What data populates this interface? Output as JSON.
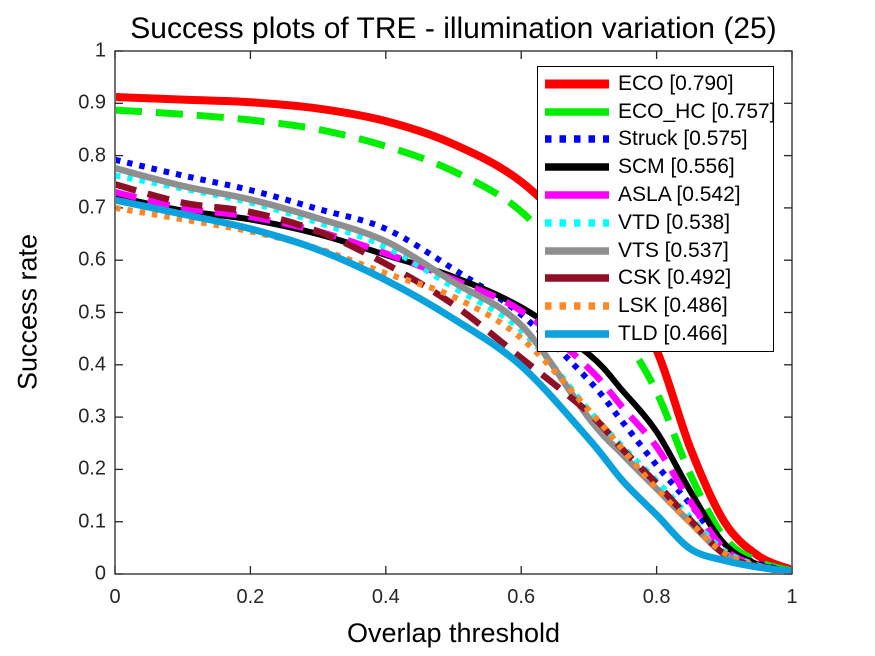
{
  "figure": {
    "title": "Success plots of TRE - illumination variation (25)",
    "xlabel": "Overlap threshold",
    "ylabel": "Success rate"
  },
  "chart_data": {
    "type": "line",
    "title": "Success plots of TRE - illumination variation (25)",
    "xlabel": "Overlap threshold",
    "ylabel": "Success rate",
    "xlim": [
      0,
      1
    ],
    "ylim": [
      0,
      1
    ],
    "grid": false,
    "legend_position": "upper right",
    "xtick_values": [
      0,
      0.2,
      0.4,
      0.6,
      0.8,
      1
    ],
    "xtick_labels": [
      "0",
      "0.2",
      "0.4",
      "0.6",
      "0.8",
      "1"
    ],
    "ytick_values": [
      0,
      0.1,
      0.2,
      0.3,
      0.4,
      0.5,
      0.6,
      0.7,
      0.8,
      0.9,
      1
    ],
    "ytick_labels": [
      "0",
      "0.1",
      "0.2",
      "0.3",
      "0.4",
      "0.5",
      "0.6",
      "0.7",
      "0.8",
      "0.9",
      "1"
    ],
    "x": [
      0,
      0.1,
      0.2,
      0.3,
      0.4,
      0.5,
      0.6,
      0.7,
      0.75,
      0.8,
      0.85,
      0.9,
      0.95,
      1
    ],
    "series": [
      {
        "name": "ECO",
        "auc": 0.79,
        "label": "ECO [0.790]",
        "color": "#fe0000",
        "style": "solid",
        "width": 8,
        "values": [
          0.912,
          0.907,
          0.902,
          0.89,
          0.866,
          0.822,
          0.75,
          0.622,
          0.532,
          0.428,
          0.24,
          0.1,
          0.035,
          0.008
        ]
      },
      {
        "name": "ECO_HC",
        "auc": 0.757,
        "label": "ECO_HC [0.757]",
        "color": "#00ee00",
        "style": "dashed",
        "width": 7,
        "values": [
          0.887,
          0.879,
          0.868,
          0.85,
          0.818,
          0.77,
          0.693,
          0.548,
          0.458,
          0.348,
          0.19,
          0.07,
          0.024,
          0.006
        ]
      },
      {
        "name": "Struck",
        "auc": 0.575,
        "label": "Struck [0.575]",
        "color": "#0000fe",
        "style": "dotted",
        "width": 6,
        "values": [
          0.792,
          0.762,
          0.734,
          0.698,
          0.66,
          0.583,
          0.496,
          0.37,
          0.29,
          0.208,
          0.133,
          0.053,
          0.02,
          0.005
        ]
      },
      {
        "name": "SCM",
        "auc": 0.556,
        "label": "SCM [0.556]",
        "color": "#000000",
        "style": "solid",
        "width": 6,
        "values": [
          0.722,
          0.695,
          0.678,
          0.65,
          0.61,
          0.568,
          0.51,
          0.42,
          0.35,
          0.272,
          0.158,
          0.058,
          0.018,
          0.005
        ]
      },
      {
        "name": "ASLA",
        "auc": 0.542,
        "label": "ASLA [0.542]",
        "color": "#ff00ff",
        "style": "dashed",
        "width": 6.5,
        "values": [
          0.73,
          0.7,
          0.683,
          0.655,
          0.613,
          0.563,
          0.503,
          0.393,
          0.318,
          0.243,
          0.138,
          0.048,
          0.016,
          0.004
        ]
      },
      {
        "name": "VTD",
        "auc": 0.538,
        "label": "VTD [0.538]",
        "color": "#00ffff",
        "style": "dotted",
        "width": 6,
        "values": [
          0.762,
          0.737,
          0.71,
          0.672,
          0.625,
          0.548,
          0.466,
          0.313,
          0.243,
          0.178,
          0.108,
          0.044,
          0.016,
          0.004
        ]
      },
      {
        "name": "VTS",
        "auc": 0.537,
        "label": "VTS [0.537]",
        "color": "#8f8f8f",
        "style": "solid",
        "width": 6.5,
        "values": [
          0.776,
          0.742,
          0.716,
          0.68,
          0.636,
          0.558,
          0.476,
          0.298,
          0.228,
          0.163,
          0.098,
          0.038,
          0.014,
          0.004
        ]
      },
      {
        "name": "CSK",
        "auc": 0.492,
        "label": "CSK [0.492]",
        "color": "#8e0f26",
        "style": "dashed",
        "width": 6.5,
        "values": [
          0.745,
          0.71,
          0.692,
          0.655,
          0.593,
          0.515,
          0.413,
          0.308,
          0.238,
          0.173,
          0.103,
          0.038,
          0.014,
          0.004
        ]
      },
      {
        "name": "LSK",
        "auc": 0.486,
        "label": "LSK [0.486]",
        "color": "#ff8726",
        "style": "dotted",
        "width": 6,
        "values": [
          0.7,
          0.678,
          0.655,
          0.622,
          0.575,
          0.53,
          0.451,
          0.313,
          0.238,
          0.163,
          0.098,
          0.04,
          0.015,
          0.004
        ]
      },
      {
        "name": "TLD",
        "auc": 0.466,
        "label": "TLD [0.466]",
        "color": "#0aa1dd",
        "style": "solid",
        "width": 7,
        "values": [
          0.715,
          0.688,
          0.66,
          0.62,
          0.562,
          0.488,
          0.398,
          0.258,
          0.178,
          0.113,
          0.048,
          0.026,
          0.013,
          0.005
        ]
      }
    ]
  }
}
